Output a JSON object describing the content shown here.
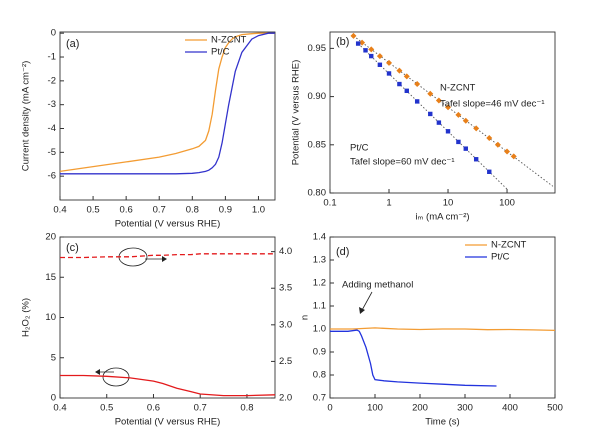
{
  "chart_data": [
    {
      "type": "line",
      "panel_label": "(a)",
      "x_label": "Potential (V versus RHE)",
      "y_label": "Current density (mA cm⁻²)",
      "x": [
        0.4,
        0.5,
        0.6,
        0.7,
        0.75,
        0.8,
        0.82,
        0.84,
        0.85,
        0.86,
        0.87,
        0.88,
        0.89,
        0.9,
        0.91,
        0.92,
        0.93,
        0.95,
        0.98,
        1.0,
        1.03,
        1.05
      ],
      "series": [
        {
          "name": "N-ZCNT",
          "color": "#f39c33",
          "style": "solid",
          "values": [
            -5.8,
            -5.6,
            -5.4,
            -5.2,
            -5.05,
            -4.85,
            -4.75,
            -4.5,
            -4.1,
            -3.4,
            -2.4,
            -1.5,
            -1.0,
            -0.6,
            -0.4,
            -0.25,
            -0.15,
            -0.06,
            -0.02,
            0,
            0,
            0
          ]
        },
        {
          "name": "Pt/C",
          "color": "#3333cc",
          "style": "solid",
          "values": [
            -5.9,
            -5.9,
            -5.9,
            -5.9,
            -5.9,
            -5.88,
            -5.85,
            -5.8,
            -5.75,
            -5.65,
            -5.5,
            -5.2,
            -4.6,
            -3.8,
            -3.0,
            -2.3,
            -1.6,
            -0.8,
            -0.25,
            -0.1,
            0,
            0
          ]
        }
      ],
      "xlim": [
        0.4,
        1.05
      ],
      "xticks": [
        0.4,
        0.5,
        0.6,
        0.7,
        0.8,
        0.9,
        {
          "value": 1.0,
          "label": "1.0"
        }
      ],
      "ylim": [
        -7,
        0.05
      ],
      "yticks": [
        0,
        -1,
        -2,
        -3,
        -4,
        -5,
        -6
      ],
      "legend": "upper right"
    },
    {
      "type": "scatter",
      "panel_label": "(b)",
      "x_label": "iₘ (mA cm⁻²)",
      "y_label": "Potential (V versus RHE)",
      "x_scale": "log",
      "series": [
        {
          "name": "N-ZCNT",
          "color": "#e8801a",
          "marker": "diamond",
          "x": [
            0.25,
            0.35,
            0.5,
            0.7,
            1,
            1.5,
            2,
            3,
            5,
            7,
            10,
            15,
            20,
            30,
            50,
            70,
            100,
            130
          ],
          "values": [
            0.963,
            0.956,
            0.949,
            0.942,
            0.935,
            0.927,
            0.921,
            0.913,
            0.903,
            0.896,
            0.889,
            0.881,
            0.875,
            0.867,
            0.857,
            0.85,
            0.843,
            0.838
          ]
        },
        {
          "name": "Pt/C",
          "color": "#2233cc",
          "marker": "square",
          "x": [
            0.3,
            0.4,
            0.5,
            0.7,
            1,
            1.5,
            2,
            3,
            5,
            7,
            10,
            15,
            20,
            30,
            50
          ],
          "values": [
            0.955,
            0.948,
            0.942,
            0.933,
            0.924,
            0.913,
            0.906,
            0.895,
            0.882,
            0.873,
            0.864,
            0.853,
            0.846,
            0.835,
            0.822
          ]
        }
      ],
      "fit_lines": [
        {
          "x": [
            0.25,
            600
          ],
          "values": [
            0.963,
            0.807
          ]
        },
        {
          "x": [
            0.3,
            100
          ],
          "values": [
            0.955,
            0.804
          ]
        }
      ],
      "annotations": [
        "N-ZCNT",
        "Tafel slope=46 mV dec⁻¹",
        "Pt/C",
        "Tafel slope=60 mV dec⁻¹"
      ],
      "xlim": [
        0.1,
        650
      ],
      "xticks": [
        0.1,
        1,
        10,
        100
      ],
      "ylim": [
        0.8,
        0.967
      ],
      "yticks": [
        {
          "value": 0.8,
          "label": "0.80"
        },
        0.85,
        {
          "value": 0.9,
          "label": "0.90"
        },
        0.95
      ]
    },
    {
      "type": "line",
      "panel_label": "(c)",
      "x_label": "Potential (V versus RHE)",
      "y_label": "H₂O₂ (%)",
      "y2_label": "n",
      "x": [
        0.4,
        0.45,
        0.5,
        0.55,
        0.6,
        0.62,
        0.65,
        0.68,
        0.7,
        0.75,
        0.8,
        0.86
      ],
      "series": [
        {
          "color": "#e31a1c",
          "style": "dashed",
          "axis": "y2",
          "values": [
            3.92,
            3.92,
            3.93,
            3.93,
            3.95,
            3.95,
            3.96,
            3.96,
            3.97,
            3.97,
            3.97,
            3.97
          ]
        },
        {
          "color": "#e31a1c",
          "style": "solid",
          "values": [
            2.8,
            2.8,
            2.7,
            2.5,
            2.1,
            1.8,
            1.2,
            0.8,
            0.5,
            0.3,
            0.3,
            0.4
          ]
        }
      ],
      "xlim": [
        0.4,
        0.86
      ],
      "xticks": [
        0.4,
        0.5,
        0.6,
        0.7,
        0.8
      ],
      "ylim": [
        0,
        20
      ],
      "yticks": [
        0,
        5,
        10,
        15,
        20
      ],
      "y2lim": [
        2.0,
        4.2
      ],
      "y2ticks": [
        {
          "value": 2,
          "label": "2.0"
        },
        2.5,
        {
          "value": 3,
          "label": "3.0"
        },
        3.5,
        {
          "value": 4,
          "label": "4.0"
        }
      ]
    },
    {
      "type": "line",
      "panel_label": "(d)",
      "x_label": "Time (s)",
      "series": [
        {
          "name": "N-ZCNT",
          "color": "#f39c33",
          "style": "solid",
          "x": [
            0,
            50,
            100,
            150,
            200,
            250,
            300,
            350,
            400,
            450,
            500
          ],
          "values": [
            1.0,
            1.0,
            1.005,
            1.0,
            0.998,
            1.0,
            1.0,
            0.997,
            0.998,
            0.996,
            0.994
          ]
        },
        {
          "name": "Pt/C",
          "color": "#2233dd",
          "style": "solid",
          "x": [
            0,
            20,
            40,
            60,
            65,
            70,
            80,
            90,
            95,
            100,
            120,
            150,
            200,
            250,
            300,
            370
          ],
          "values": [
            0.99,
            0.99,
            0.99,
            0.995,
            0.99,
            0.97,
            0.92,
            0.85,
            0.8,
            0.78,
            0.775,
            0.77,
            0.765,
            0.76,
            0.755,
            0.752
          ]
        }
      ],
      "annotations": [
        "Adding methanol"
      ],
      "xlim": [
        0,
        500
      ],
      "xticks": [
        0,
        100,
        200,
        300,
        400,
        500
      ],
      "ylim": [
        0.7,
        1.4
      ],
      "yticks": [
        0.7,
        0.8,
        0.9,
        {
          "value": 1,
          "label": "1.0"
        },
        1.1,
        1.2,
        1.3,
        1.4
      ],
      "legend": "upper right"
    }
  ]
}
